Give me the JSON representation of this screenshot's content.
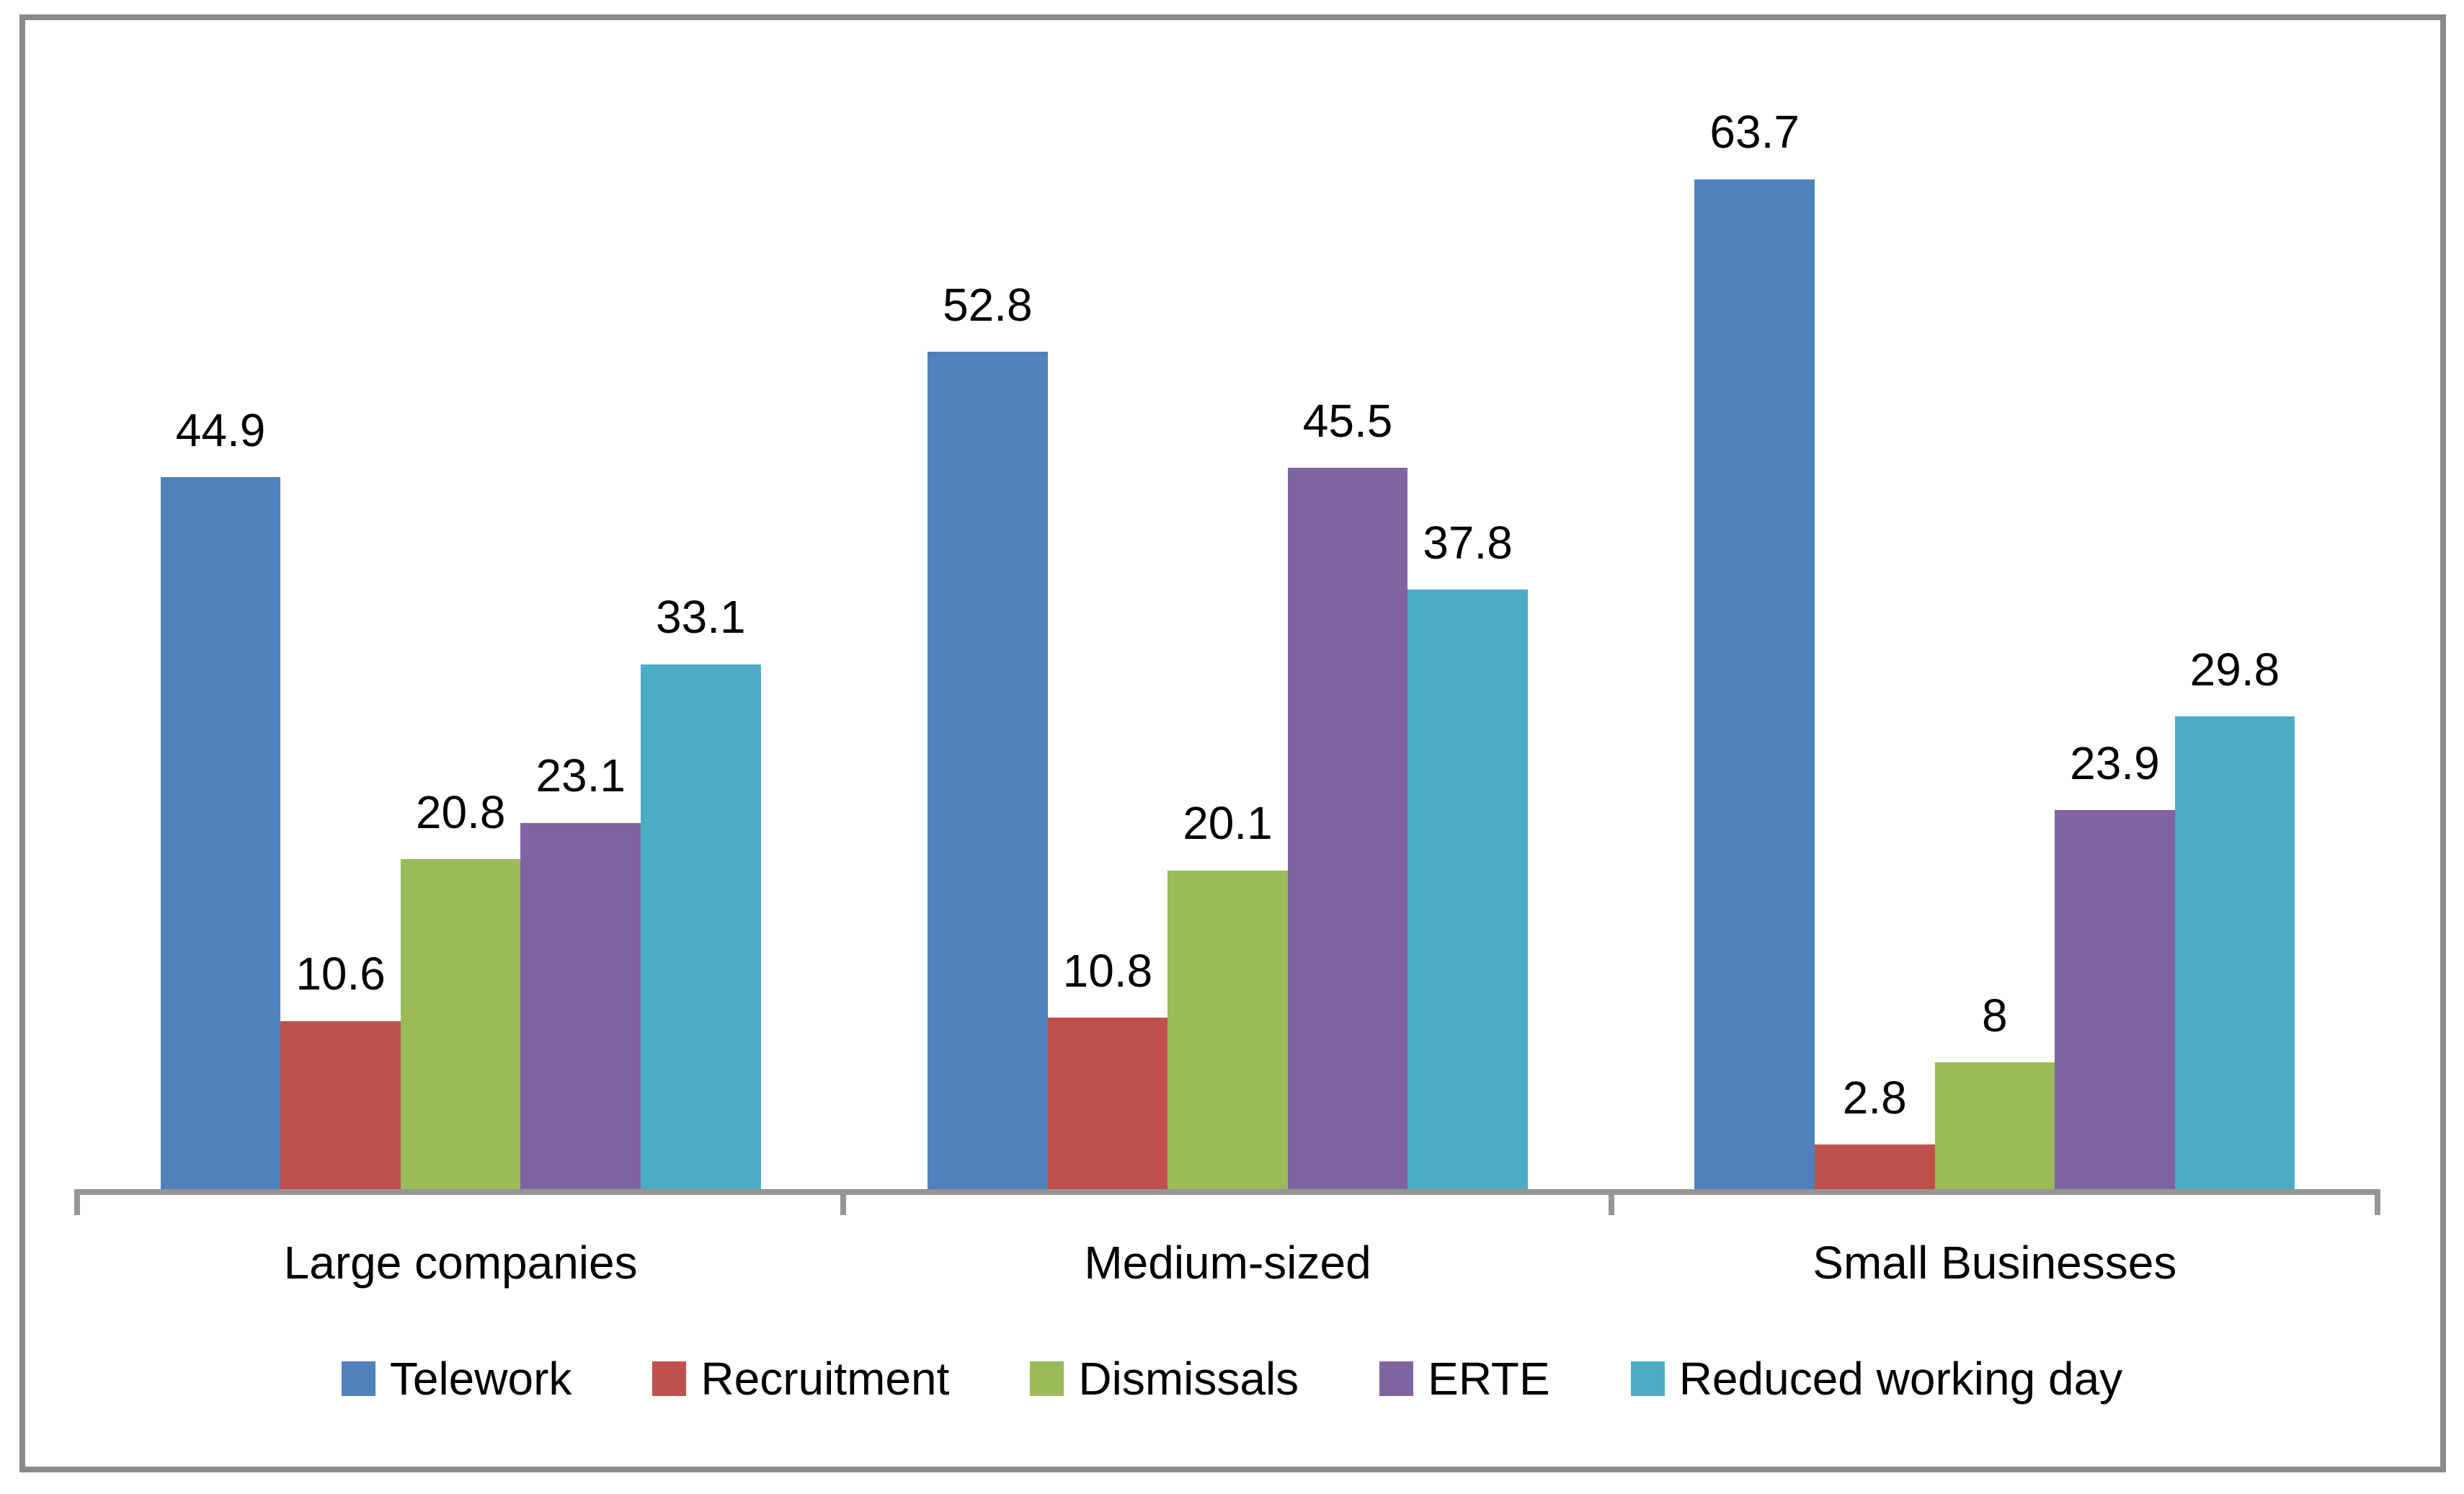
{
  "chart_data": {
    "type": "bar",
    "title": "",
    "xlabel": "",
    "ylabel": "",
    "categories": [
      "Large companies",
      "Medium-sized",
      "Small Businesses"
    ],
    "series": [
      {
        "name": "Telework",
        "color": "#4F81BD",
        "values": [
          44.9,
          52.8,
          63.7
        ]
      },
      {
        "name": "Recruitment",
        "color": "#C0504D",
        "values": [
          10.6,
          10.8,
          2.8
        ]
      },
      {
        "name": "Dismissals",
        "color": "#9BBB59",
        "values": [
          20.8,
          20.1,
          8
        ]
      },
      {
        "name": "ERTE",
        "color": "#8064A2",
        "values": [
          23.1,
          45.5,
          23.9
        ]
      },
      {
        "name": "Reduced working day",
        "color": "#4BACC6",
        "values": [
          33.1,
          37.8,
          29.8
        ]
      }
    ],
    "ylim": [
      0,
      70
    ],
    "grid": false,
    "data_labels": true,
    "legend_position": "bottom",
    "background_color": "#ffffff",
    "frame_color": "#8a8a8a",
    "axis_color": "#969696",
    "label_color": "#000000"
  }
}
